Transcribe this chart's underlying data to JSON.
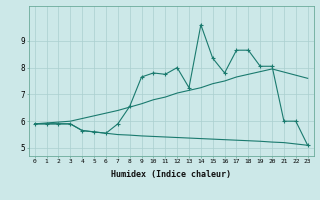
{
  "title": "",
  "xlabel": "Humidex (Indice chaleur)",
  "bg_color": "#cce8e8",
  "line_color": "#1a7a6e",
  "grid_color": "#aacfcf",
  "xlim": [
    -0.5,
    23.5
  ],
  "ylim": [
    4.7,
    10.3
  ],
  "xticks": [
    0,
    1,
    2,
    3,
    4,
    5,
    6,
    7,
    8,
    9,
    10,
    11,
    12,
    13,
    14,
    15,
    16,
    17,
    18,
    19,
    20,
    21,
    22,
    23
  ],
  "yticks": [
    5,
    6,
    7,
    8,
    9
  ],
  "main_x": [
    0,
    1,
    2,
    3,
    4,
    5,
    6,
    7,
    8,
    9,
    10,
    11,
    12,
    13,
    14,
    15,
    16,
    17,
    18,
    19,
    20,
    21,
    22,
    23
  ],
  "main_y": [
    5.9,
    5.9,
    5.9,
    5.9,
    5.65,
    5.6,
    5.55,
    5.9,
    6.55,
    7.65,
    7.8,
    7.75,
    8.0,
    7.25,
    9.6,
    8.35,
    7.8,
    8.65,
    8.65,
    8.05,
    8.05,
    6.0,
    6.0,
    5.1
  ],
  "upper_x": [
    0,
    3,
    7,
    9,
    10,
    11,
    12,
    13,
    14,
    15,
    16,
    17,
    18,
    19,
    20,
    23
  ],
  "upper_y": [
    5.9,
    6.0,
    6.4,
    6.65,
    6.8,
    6.9,
    7.05,
    7.15,
    7.25,
    7.4,
    7.5,
    7.65,
    7.75,
    7.85,
    7.95,
    7.6
  ],
  "lower_x": [
    0,
    3,
    4,
    5,
    6,
    7,
    8,
    9,
    10,
    11,
    12,
    13,
    14,
    15,
    16,
    17,
    18,
    19,
    20,
    21,
    22,
    23
  ],
  "lower_y": [
    5.9,
    5.9,
    5.65,
    5.6,
    5.55,
    5.5,
    5.48,
    5.45,
    5.43,
    5.41,
    5.39,
    5.37,
    5.35,
    5.33,
    5.31,
    5.29,
    5.27,
    5.25,
    5.22,
    5.2,
    5.15,
    5.1
  ]
}
